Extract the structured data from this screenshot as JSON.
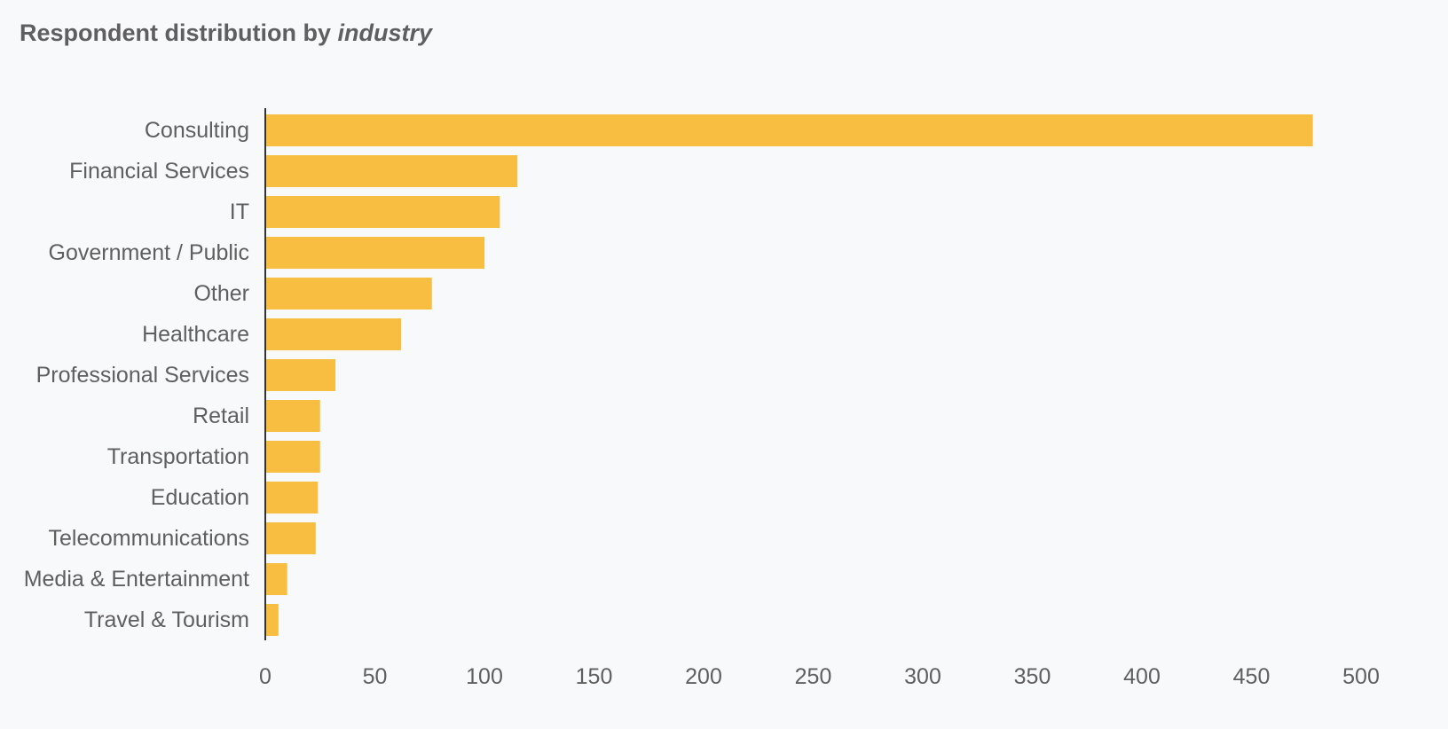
{
  "title": {
    "prefix": "Respondent distribution by ",
    "emphasis": "industry"
  },
  "colors": {
    "bar": "#f7be41",
    "text": "#5f5f5f",
    "axis": "#333333",
    "background": "#f8f9fb"
  },
  "chart_data": {
    "type": "bar",
    "orientation": "horizontal",
    "title": "Respondent distribution by industry",
    "xlabel": "",
    "ylabel": "",
    "categories": [
      "Consulting",
      "Financial Services",
      "IT",
      "Government / Public",
      "Other",
      "Healthcare",
      "Professional Services",
      "Retail",
      "Transportation",
      "Education",
      "Telecommunications",
      "Media & Entertainment",
      "Travel & Tourism"
    ],
    "values": [
      478,
      115,
      107,
      100,
      76,
      62,
      32,
      25,
      25,
      24,
      23,
      10,
      6
    ],
    "xlim": [
      0,
      500
    ],
    "xticks": [
      0,
      50,
      100,
      150,
      200,
      250,
      300,
      350,
      400,
      450,
      500
    ],
    "grid": false,
    "legend": "none"
  }
}
